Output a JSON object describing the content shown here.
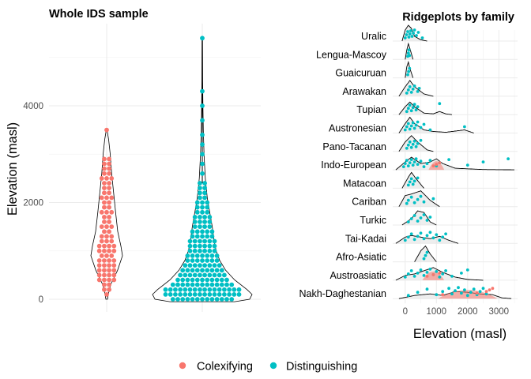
{
  "colors": {
    "colexifying": "#F8766D",
    "distinguishing": "#00BFC4",
    "outline": "#000000",
    "grid": "#EBEBEB"
  },
  "legend": {
    "items": [
      "Colexifying",
      "Distinguishing"
    ],
    "position": "bottom"
  },
  "chart_data": [
    {
      "type": "violin",
      "title": "Whole IDS sample",
      "xlabel": "",
      "ylabel": "Elevation (masl)",
      "ylim": [
        -50,
        5500
      ],
      "yticks": [
        0,
        2000,
        4000
      ],
      "grid": true,
      "series": [
        {
          "name": "Colexifying",
          "max": 3500,
          "density": [
            [
              0,
              0.04
            ],
            [
              100,
              0.08
            ],
            [
              300,
              0.2
            ],
            [
              600,
              0.55
            ],
            [
              900,
              0.8
            ],
            [
              1100,
              0.72
            ],
            [
              1400,
              0.56
            ],
            [
              1800,
              0.45
            ],
            [
              2200,
              0.35
            ],
            [
              2600,
              0.25
            ],
            [
              3000,
              0.18
            ],
            [
              3300,
              0.1
            ],
            [
              3500,
              0.02
            ]
          ],
          "counts": [
            [
              100,
              1
            ],
            [
              200,
              2
            ],
            [
              300,
              2
            ],
            [
              400,
              4
            ],
            [
              500,
              4
            ],
            [
              600,
              4
            ],
            [
              700,
              4
            ],
            [
              800,
              4
            ],
            [
              900,
              3
            ],
            [
              1000,
              4
            ],
            [
              1100,
              4
            ],
            [
              1200,
              3
            ],
            [
              1300,
              3
            ],
            [
              1400,
              2
            ],
            [
              1500,
              3
            ],
            [
              1600,
              2
            ],
            [
              1700,
              2
            ],
            [
              1800,
              3
            ],
            [
              1900,
              2
            ],
            [
              2000,
              2
            ],
            [
              2100,
              3
            ],
            [
              2200,
              2
            ],
            [
              2300,
              2
            ],
            [
              2400,
              2
            ],
            [
              2500,
              3
            ],
            [
              2600,
              2
            ],
            [
              2700,
              2
            ],
            [
              2800,
              2
            ],
            [
              2900,
              2
            ],
            [
              3500,
              1
            ]
          ]
        },
        {
          "name": "Distinguishing",
          "max": 5400,
          "density": [
            [
              -50,
              0.65
            ],
            [
              0,
              0.95
            ],
            [
              100,
              1.0
            ],
            [
              200,
              0.9
            ],
            [
              400,
              0.65
            ],
            [
              600,
              0.47
            ],
            [
              800,
              0.35
            ],
            [
              1000,
              0.28
            ],
            [
              1200,
              0.24
            ],
            [
              1500,
              0.2
            ],
            [
              1800,
              0.15
            ],
            [
              2100,
              0.1
            ],
            [
              2500,
              0.06
            ],
            [
              3000,
              0.035
            ],
            [
              3500,
              0.02
            ],
            [
              4000,
              0.012
            ],
            [
              4500,
              0.008
            ],
            [
              5000,
              0.006
            ],
            [
              5400,
              0.004
            ]
          ],
          "counts": [
            [
              0,
              13
            ],
            [
              100,
              16
            ],
            [
              200,
              16
            ],
            [
              300,
              13
            ],
            [
              400,
              11
            ],
            [
              500,
              10
            ],
            [
              600,
              9
            ],
            [
              700,
              8
            ],
            [
              800,
              7
            ],
            [
              900,
              7
            ],
            [
              1000,
              6
            ],
            [
              1100,
              6
            ],
            [
              1200,
              6
            ],
            [
              1300,
              5
            ],
            [
              1400,
              5
            ],
            [
              1500,
              4
            ],
            [
              1600,
              4
            ],
            [
              1700,
              4
            ],
            [
              1800,
              3
            ],
            [
              1900,
              3
            ],
            [
              2000,
              3
            ],
            [
              2100,
              2
            ],
            [
              2200,
              2
            ],
            [
              2300,
              2
            ],
            [
              2400,
              2
            ],
            [
              2600,
              1
            ],
            [
              2800,
              1
            ],
            [
              3000,
              1
            ],
            [
              3200,
              1
            ],
            [
              3400,
              1
            ],
            [
              3700,
              1
            ],
            [
              4000,
              1
            ],
            [
              4300,
              1
            ],
            [
              5400,
              1
            ]
          ]
        }
      ]
    },
    {
      "type": "ridgeline",
      "title": "Ridgeplots by family",
      "xlabel": "Elevation (masl)",
      "ylabel": "",
      "xlim": [
        -400,
        3600
      ],
      "xticks": [
        0,
        1000,
        2000,
        3000
      ],
      "grid": true,
      "families": [
        {
          "name": "Uralic",
          "ridge": [
            [
              -100,
              0
            ],
            [
              0,
              0.7
            ],
            [
              100,
              1.0
            ],
            [
              200,
              0.8
            ],
            [
              300,
              0.3
            ],
            [
              500,
              0.08
            ],
            [
              700,
              0
            ]
          ],
          "distinguishing": [
            0,
            40,
            80,
            120,
            150,
            180,
            220,
            260,
            300,
            360,
            420,
            550
          ],
          "colexifying": []
        },
        {
          "name": "Lengua-Mascoy",
          "ridge": [
            [
              0,
              0
            ],
            [
              50,
              0.6
            ],
            [
              100,
              1.0
            ],
            [
              150,
              0.7
            ],
            [
              250,
              0
            ]
          ],
          "distinguishing": [
            80,
            100,
            120,
            140
          ],
          "colexifying": []
        },
        {
          "name": "Guaicuruan",
          "ridge": [
            [
              0,
              0
            ],
            [
              50,
              0.7
            ],
            [
              100,
              1.0
            ],
            [
              150,
              0.6
            ],
            [
              250,
              0
            ]
          ],
          "distinguishing": [
            80,
            110,
            140
          ],
          "colexifying": []
        },
        {
          "name": "Arawakan",
          "ridge": [
            [
              -200,
              0
            ],
            [
              0,
              0.6
            ],
            [
              150,
              1.0
            ],
            [
              300,
              0.6
            ],
            [
              600,
              0.15
            ],
            [
              900,
              0
            ]
          ],
          "distinguishing": [
            50,
            100,
            150,
            200,
            250,
            300,
            400,
            450
          ],
          "colexifying": []
        },
        {
          "name": "Tupian",
          "ridge": [
            [
              -200,
              0
            ],
            [
              0,
              0.5
            ],
            [
              150,
              0.8
            ],
            [
              300,
              0.5
            ],
            [
              600,
              0.1
            ],
            [
              900,
              0.05
            ],
            [
              1100,
              0.2
            ],
            [
              1300,
              0.05
            ],
            [
              1500,
              0
            ]
          ],
          "distinguishing": [
            50,
            100,
            150,
            200,
            250,
            300,
            350,
            400,
            1100
          ],
          "colexifying": []
        },
        {
          "name": "Austronesian",
          "ridge": [
            [
              -200,
              0
            ],
            [
              0,
              0.6
            ],
            [
              150,
              1.0
            ],
            [
              300,
              0.6
            ],
            [
              600,
              0.2
            ],
            [
              900,
              0.1
            ],
            [
              1300,
              0.05
            ],
            [
              1900,
              0.2
            ],
            [
              2200,
              0
            ]
          ],
          "distinguishing": [
            0,
            50,
            100,
            150,
            200,
            250,
            300,
            350,
            400,
            500,
            600,
            800,
            1900
          ],
          "colexifying": []
        },
        {
          "name": "Pano-Tacanan",
          "ridge": [
            [
              -200,
              0
            ],
            [
              0,
              0.6
            ],
            [
              200,
              1.0
            ],
            [
              400,
              0.6
            ],
            [
              700,
              0.1
            ],
            [
              900,
              0
            ]
          ],
          "distinguishing": [
            50,
            100,
            150,
            200,
            250,
            300,
            350,
            400,
            500
          ],
          "colexifying": []
        },
        {
          "name": "Indo-European",
          "ridge": [
            [
              -300,
              0
            ],
            [
              0,
              0.5
            ],
            [
              200,
              0.8
            ],
            [
              500,
              0.4
            ],
            [
              800,
              0.5
            ],
            [
              1000,
              0.7
            ],
            [
              1200,
              0.4
            ],
            [
              1600,
              0.1
            ],
            [
              2500,
              0.02
            ],
            [
              3500,
              0
            ]
          ],
          "distinguishing": [
            -50,
            0,
            50,
            100,
            150,
            200,
            250,
            300,
            350,
            400,
            500,
            600,
            700,
            800,
            1000,
            1100,
            1400,
            2000,
            2500,
            3300
          ],
          "colexifying": [
            900,
            1000,
            1100
          ]
        },
        {
          "name": "Matacoan",
          "ridge": [
            [
              -100,
              0
            ],
            [
              100,
              0.7
            ],
            [
              200,
              1.0
            ],
            [
              350,
              0.6
            ],
            [
              600,
              0
            ]
          ],
          "distinguishing": [
            100,
            150,
            200,
            250,
            300,
            400
          ],
          "colexifying": []
        },
        {
          "name": "Cariban",
          "ridge": [
            [
              -200,
              0
            ],
            [
              0,
              0.7
            ],
            [
              200,
              0.8
            ],
            [
              500,
              1.0
            ],
            [
              800,
              0.4
            ],
            [
              1100,
              0
            ]
          ],
          "distinguishing": [
            50,
            100,
            200,
            300,
            400,
            500,
            600,
            900
          ],
          "colexifying": []
        },
        {
          "name": "Turkic",
          "ridge": [
            [
              -100,
              0
            ],
            [
              200,
              0.4
            ],
            [
              400,
              0.9
            ],
            [
              600,
              0.8
            ],
            [
              800,
              0.2
            ],
            [
              1000,
              0
            ]
          ],
          "distinguishing": [
            100,
            200,
            300,
            400,
            500,
            600,
            700,
            800
          ],
          "colexifying": []
        },
        {
          "name": "Tai-Kadai",
          "ridge": [
            [
              -300,
              0
            ],
            [
              0,
              0.4
            ],
            [
              200,
              0.5
            ],
            [
              500,
              0.4
            ],
            [
              800,
              0.3
            ],
            [
              1100,
              0.45
            ],
            [
              1400,
              0.2
            ],
            [
              1700,
              0
            ]
          ],
          "distinguishing": [
            0,
            100,
            200,
            300,
            400,
            500,
            600,
            700,
            800,
            900,
            1000,
            1100,
            1200,
            1300
          ],
          "colexifying": []
        },
        {
          "name": "Afro-Asiatic",
          "ridge": [
            [
              300,
              0
            ],
            [
              500,
              0.7
            ],
            [
              650,
              1.0
            ],
            [
              800,
              0.5
            ],
            [
              1000,
              0
            ]
          ],
          "distinguishing": [
            600,
            650,
            700
          ],
          "colexifying": []
        },
        {
          "name": "Austroasiatic",
          "ridge": [
            [
              -300,
              0
            ],
            [
              0,
              0.3
            ],
            [
              300,
              0.4
            ],
            [
              600,
              0.6
            ],
            [
              900,
              0.8
            ],
            [
              1200,
              0.5
            ],
            [
              1600,
              0.2
            ],
            [
              2000,
              0.05
            ],
            [
              2500,
              0
            ]
          ],
          "distinguishing": [
            0,
            100,
            200,
            300,
            400,
            500,
            600,
            700,
            800,
            900,
            1000,
            1100,
            1200,
            1300,
            1500,
            1800,
            2000
          ],
          "colexifying": [
            700,
            900,
            1100
          ]
        },
        {
          "name": "Nakh-Daghestanian",
          "ridge": [
            [
              -200,
              0
            ],
            [
              300,
              0.2
            ],
            [
              800,
              0.3
            ],
            [
              1200,
              0.2
            ],
            [
              1600,
              0.45
            ],
            [
              2000,
              0.4
            ],
            [
              2400,
              0.3
            ],
            [
              2800,
              0.25
            ],
            [
              3100,
              0.05
            ],
            [
              3400,
              0
            ]
          ],
          "distinguishing": [
            100,
            400,
            700,
            1000,
            1200,
            1400,
            1500,
            1600,
            1700,
            1800,
            1900,
            2000,
            2100,
            2200,
            2300,
            2400,
            2500,
            2600
          ],
          "colexifying": [
            1200,
            2300,
            2600,
            2700,
            2800
          ]
        }
      ]
    }
  ]
}
